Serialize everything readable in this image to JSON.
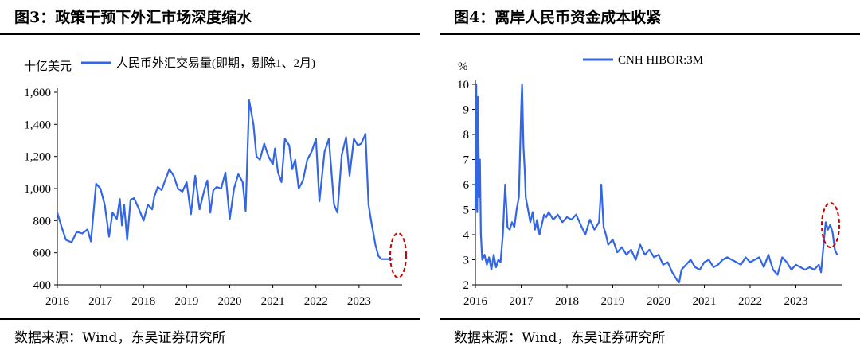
{
  "panels": [
    {
      "title": "图3：政策干预下外汇市场深度缩水",
      "source": "数据来源：Wind，东吴证券研究所"
    },
    {
      "title": "图4：离岸人民币资金成本收紧",
      "source": "数据来源：Wind，东吴证券研究所"
    }
  ],
  "colors": {
    "series": "#3366e6",
    "highlight": "#cc0000",
    "axis": "#000000"
  },
  "chart_data": [
    {
      "type": "line",
      "title": "",
      "ylabel": "十亿美元",
      "xlabel": "",
      "legend": "人民币外汇交易量(即期，剔除1、2月)",
      "ylim": [
        400,
        1600
      ],
      "yticks": [
        400,
        600,
        800,
        1000,
        1200,
        1400,
        1600
      ],
      "ytick_labels": [
        "400",
        "600",
        "800",
        "1,000",
        "1,200",
        "1,400",
        "1,600"
      ],
      "xlim": [
        2016,
        2024
      ],
      "xticks": [
        "2016",
        "2017",
        "2018",
        "2019",
        "2020",
        "2021",
        "2022",
        "2023"
      ],
      "highlight": "end of series (2023)",
      "series": [
        {
          "name": "人民币外汇交易量(即期，剔除1、2月)",
          "x": [
            2016.0,
            2016.1,
            2016.2,
            2016.33,
            2016.45,
            2016.58,
            2016.7,
            2016.78,
            2016.9,
            2017.0,
            2017.1,
            2017.2,
            2017.28,
            2017.38,
            2017.45,
            2017.5,
            2017.55,
            2017.62,
            2017.7,
            2017.78,
            2017.88,
            2018.0,
            2018.1,
            2018.2,
            2018.25,
            2018.33,
            2018.42,
            2018.5,
            2018.6,
            2018.7,
            2018.8,
            2018.9,
            2019.0,
            2019.1,
            2019.2,
            2019.3,
            2019.42,
            2019.48,
            2019.55,
            2019.62,
            2019.7,
            2019.8,
            2019.9,
            2020.0,
            2020.1,
            2020.2,
            2020.3,
            2020.37,
            2020.45,
            2020.55,
            2020.62,
            2020.7,
            2020.8,
            2020.9,
            2021.0,
            2021.05,
            2021.12,
            2021.2,
            2021.28,
            2021.38,
            2021.45,
            2021.52,
            2021.6,
            2021.7,
            2021.8,
            2021.9,
            2022.0,
            2022.08,
            2022.2,
            2022.3,
            2022.42,
            2022.5,
            2022.6,
            2022.7,
            2022.78,
            2022.88,
            2022.97,
            2023.05,
            2023.15,
            2023.22,
            2023.28,
            2023.38,
            2023.45,
            2023.52,
            2023.6,
            2023.7,
            2023.8
          ],
          "values": [
            850,
            760,
            680,
            665,
            730,
            720,
            745,
            670,
            1030,
            1000,
            900,
            700,
            850,
            810,
            935,
            770,
            900,
            680,
            930,
            940,
            880,
            800,
            900,
            870,
            950,
            1010,
            990,
            1050,
            1120,
            1080,
            1000,
            980,
            1040,
            840,
            1080,
            870,
            1000,
            1050,
            850,
            990,
            1010,
            1000,
            1100,
            810,
            1000,
            1090,
            1040,
            860,
            1550,
            1400,
            1200,
            1180,
            1280,
            1200,
            1150,
            1250,
            1100,
            1040,
            1310,
            1270,
            1120,
            1180,
            1000,
            1050,
            1180,
            1230,
            1310,
            920,
            1230,
            1310,
            900,
            850,
            1210,
            1320,
            1080,
            1310,
            1270,
            1280,
            1340,
            900,
            800,
            650,
            580,
            560,
            560,
            560,
            560
          ]
        }
      ]
    },
    {
      "type": "line",
      "title": "",
      "ylabel": "%",
      "xlabel": "",
      "legend": "CNH HIBOR:3M",
      "ylim": [
        2,
        10
      ],
      "yticks": [
        2,
        3,
        4,
        5,
        6,
        7,
        8,
        9,
        10
      ],
      "ytick_labels": [
        "2",
        "3",
        "4",
        "5",
        "6",
        "7",
        "8",
        "9",
        "10"
      ],
      "xlim": [
        2016,
        2024
      ],
      "xticks": [
        "2016",
        "2017",
        "2018",
        "2019",
        "2020",
        "2021",
        "2022",
        "2023"
      ],
      "highlight": "2023 Q3-Q4 spike",
      "series": [
        {
          "name": "CNH HIBOR:3M",
          "x": [
            2016.0,
            2016.02,
            2016.04,
            2016.06,
            2016.08,
            2016.1,
            2016.12,
            2016.15,
            2016.2,
            2016.25,
            2016.3,
            2016.35,
            2016.4,
            2016.45,
            2016.5,
            2016.55,
            2016.6,
            2016.65,
            2016.7,
            2016.75,
            2016.8,
            2016.85,
            2016.9,
            2016.95,
            2017.0,
            2017.02,
            2017.05,
            2017.08,
            2017.1,
            2017.15,
            2017.2,
            2017.25,
            2017.3,
            2017.35,
            2017.4,
            2017.45,
            2017.5,
            2017.55,
            2017.6,
            2017.7,
            2017.8,
            2017.9,
            2018.0,
            2018.1,
            2018.2,
            2018.3,
            2018.4,
            2018.5,
            2018.6,
            2018.7,
            2018.75,
            2018.8,
            2018.85,
            2018.9,
            2019.0,
            2019.1,
            2019.2,
            2019.3,
            2019.4,
            2019.5,
            2019.6,
            2019.7,
            2019.8,
            2019.9,
            2020.0,
            2020.1,
            2020.2,
            2020.3,
            2020.4,
            2020.45,
            2020.5,
            2020.6,
            2020.7,
            2020.8,
            2020.9,
            2021.0,
            2021.1,
            2021.2,
            2021.3,
            2021.4,
            2021.5,
            2021.6,
            2021.7,
            2021.8,
            2021.9,
            2022.0,
            2022.1,
            2022.2,
            2022.3,
            2022.4,
            2022.5,
            2022.6,
            2022.7,
            2022.8,
            2022.9,
            2023.0,
            2023.1,
            2023.2,
            2023.3,
            2023.4,
            2023.5,
            2023.55,
            2023.6,
            2023.65,
            2023.7,
            2023.75,
            2023.8,
            2023.85,
            2023.9
          ],
          "values": [
            5.0,
            10.0,
            4.9,
            9.5,
            5.5,
            7.0,
            4.0,
            3.0,
            3.2,
            2.8,
            3.1,
            2.6,
            3.2,
            2.7,
            3.0,
            2.9,
            4.0,
            6.0,
            4.3,
            4.2,
            4.5,
            4.3,
            5.0,
            5.5,
            9.0,
            10.0,
            7.5,
            6.5,
            5.5,
            5.0,
            4.5,
            4.9,
            4.2,
            4.6,
            4.0,
            4.4,
            4.8,
            4.7,
            4.9,
            4.6,
            4.8,
            4.5,
            4.7,
            4.6,
            4.8,
            4.4,
            4.0,
            4.6,
            4.2,
            4.5,
            6.0,
            4.3,
            4.0,
            3.6,
            3.8,
            3.3,
            3.5,
            3.2,
            3.4,
            3.0,
            3.6,
            3.2,
            3.4,
            3.1,
            3.2,
            2.8,
            2.9,
            2.5,
            2.2,
            2.1,
            2.6,
            2.8,
            3.0,
            2.7,
            2.6,
            2.9,
            3.0,
            2.7,
            2.8,
            3.0,
            3.1,
            3.0,
            2.9,
            2.8,
            3.1,
            2.9,
            3.0,
            3.1,
            2.7,
            3.2,
            2.6,
            2.4,
            3.1,
            2.9,
            2.6,
            2.8,
            2.7,
            2.6,
            2.7,
            2.6,
            2.8,
            2.5,
            3.5,
            4.5,
            4.2,
            4.4,
            4.1,
            3.4,
            3.2
          ]
        }
      ]
    }
  ]
}
